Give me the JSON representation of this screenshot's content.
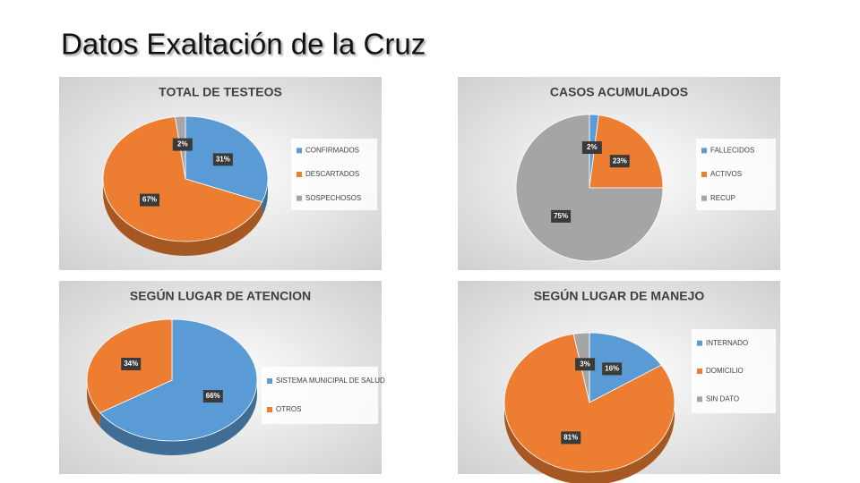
{
  "title": "Datos Exaltación de la Cruz",
  "chart_data": [
    {
      "type": "pie",
      "title": "TOTAL DE TESTEOS",
      "three_d": true,
      "legend": "right",
      "categories": [
        "CONFIRMADOS",
        "DESCARTADOS",
        "SOSPECHOSOS"
      ],
      "values": [
        31,
        67,
        2
      ],
      "value_labels": [
        "31%",
        "67%",
        "2%"
      ],
      "colors": [
        "#5b9bd5",
        "#ed7d31",
        "#a5a5a5"
      ]
    },
    {
      "type": "pie",
      "title": "CASOS ACUMULADOS",
      "three_d": false,
      "legend": "right",
      "categories": [
        "FALLECIDOS",
        "ACTIVOS",
        "RECUP"
      ],
      "values": [
        2,
        23,
        75
      ],
      "value_labels": [
        "2%",
        "23%",
        "75%"
      ],
      "colors": [
        "#5b9bd5",
        "#ed7d31",
        "#a5a5a5"
      ]
    },
    {
      "type": "pie",
      "title": "SEGÚN LUGAR DE ATENCION",
      "three_d": true,
      "legend": "right",
      "categories": [
        "SISTEMA MUNICIPAL DE SALUD",
        "OTROS"
      ],
      "values": [
        66,
        34
      ],
      "value_labels": [
        "66%",
        "34%"
      ],
      "colors": [
        "#5b9bd5",
        "#ed7d31"
      ]
    },
    {
      "type": "pie",
      "title": "SEGÚN LUGAR DE MANEJO",
      "three_d": true,
      "legend": "right",
      "categories": [
        "INTERNADO",
        "DOMICILIO",
        "SIN DATO"
      ],
      "values": [
        16,
        81,
        3
      ],
      "value_labels": [
        "16%",
        "81%",
        "3%"
      ],
      "colors": [
        "#5b9bd5",
        "#ed7d31",
        "#a5a5a5"
      ]
    }
  ]
}
